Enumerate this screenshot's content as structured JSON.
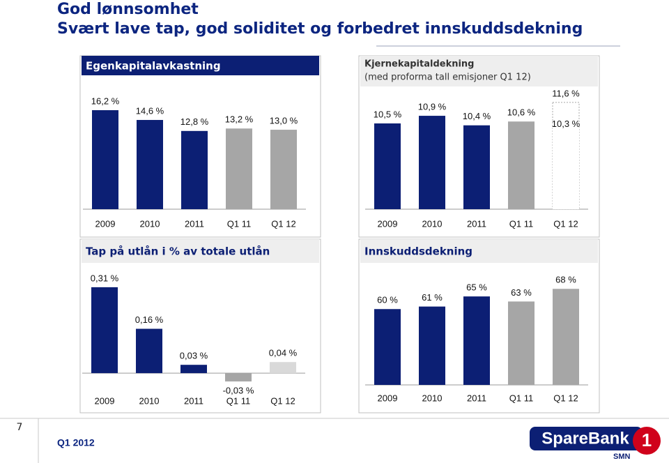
{
  "title": "God lønnsomhet",
  "subtitle": "Svært lave tap, god soliditet og forbedret innskuddsdekning",
  "chart_data": [
    {
      "type": "bar",
      "title": "Egenkapitalavkastning",
      "categories": [
        "2009",
        "2010",
        "2011",
        "Q1 11",
        "Q1 12"
      ],
      "values": [
        16.2,
        14.6,
        12.8,
        13.2,
        13.0
      ],
      "value_labels": [
        "16,2 %",
        "14,6 %",
        "12,8 %",
        "13,2 %",
        "13,0 %"
      ],
      "colors": [
        "#0c1f74",
        "#0c1f74",
        "#0c1f74",
        "#a6a6a6",
        "#a6a6a6"
      ],
      "ylim": [
        0,
        17
      ]
    },
    {
      "type": "bar",
      "title": "Kjernekapitaldekning",
      "subtitle": "(med proforma tall emisjoner Q1 12)",
      "categories": [
        "2009",
        "2010",
        "2011",
        "Q1 11",
        "Q1 12"
      ],
      "values": [
        10.5,
        10.9,
        10.4,
        10.6,
        10.3
      ],
      "value_labels": [
        "10,5 %",
        "10,9 %",
        "10,4 %",
        "10,6 %",
        "10,3 %"
      ],
      "colors": [
        "#0c1f74",
        "#0c1f74",
        "#0c1f74",
        "#a6a6a6",
        "#ffffff"
      ],
      "proforma_values": [
        null,
        null,
        null,
        null,
        11.6
      ],
      "proforma_value_labels": [
        null,
        null,
        null,
        null,
        "11,6 %"
      ],
      "proforma_color": "#a6a6a6",
      "ylim": [
        6,
        12
      ]
    },
    {
      "type": "bar",
      "title": "Tap på utlån i % av totale utlån",
      "categories": [
        "2009",
        "2010",
        "2011",
        "Q1 11",
        "Q1 12"
      ],
      "values": [
        0.31,
        0.16,
        0.03,
        -0.03,
        0.04
      ],
      "value_labels": [
        "0,31 %",
        "0,16 %",
        "0,03 %",
        "-0,03 %",
        "0,04 %"
      ],
      "colors": [
        "#0c1f74",
        "#0c1f74",
        "#0c1f74",
        "#a6a6a6",
        "#d9d9d9"
      ],
      "ylim": [
        -0.05,
        0.35
      ]
    },
    {
      "type": "bar",
      "title": "Innskuddsdekning",
      "categories": [
        "2009",
        "2010",
        "2011",
        "Q1 11",
        "Q1 12"
      ],
      "values": [
        60,
        61,
        65,
        63,
        68
      ],
      "value_labels": [
        "60 %",
        "61 %",
        "65 %",
        "63 %",
        "68 %"
      ],
      "colors": [
        "#0c1f74",
        "#0c1f74",
        "#0c1f74",
        "#a6a6a6",
        "#a6a6a6"
      ],
      "ylim": [
        30,
        70
      ]
    }
  ],
  "footer": {
    "page": "7",
    "period": "Q1 2012",
    "logo": "SpareBank",
    "logo_number": "1",
    "logo_sub": "SMN"
  }
}
